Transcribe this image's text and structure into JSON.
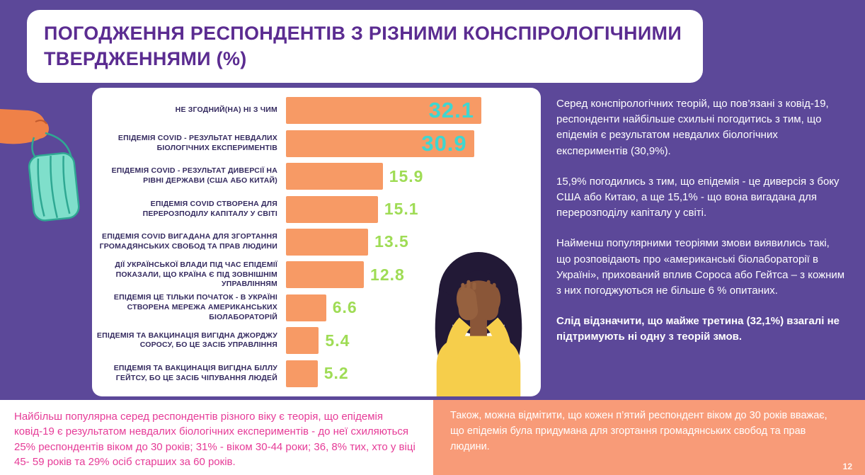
{
  "header": {
    "title": "ПОГОДЖЕННЯ РЕСПОНДЕНТІВ З РІЗНИМИ КОНСПІРОЛОГІЧНИМИ ТВЕРДЖЕННЯМИ (%)"
  },
  "chart_data": {
    "type": "bar",
    "orientation": "horizontal",
    "unit": "%",
    "categories": [
      "НЕ ЗГОДНИЙ(НА) НІ З ЧИМ",
      "ЕПІДЕМІЯ COVID - РЕЗУЛЬТАТ НЕВДАЛИХ БІОЛОГІЧНИХ ЕКСПЕРИМЕНТІВ",
      "ЕПІДЕМІЯ COVID - РЕЗУЛЬТАТ ДИВЕРСІЇ НА РІВНІ ДЕРЖАВИ (США АБО КИТАЙ)",
      "ЕПІДЕМІЯ COVID СТВОРЕНА ДЛЯ ПЕРЕРОЗПОДІЛУ КАПІТАЛУ У СВІТІ",
      "ЕПІДЕМІЯ COVID ВИГАДАНА ДЛЯ ЗГОРТАННЯ ГРОМАДЯНСЬКИХ СВОБОД ТА ПРАВ ЛЮДИНИ",
      "ДІЇ УКРАЇНСЬКОЇ ВЛАДИ ПІД ЧАС ЕПІДЕМІЇ ПОКАЗАЛИ, ЩО КРАЇНА Є ПІД ЗОВНІШНІМ УПРАВЛІННЯМ",
      "ЕПІДЕМІЯ ЦЕ ТІЛЬКИ ПОЧАТОК - В УКРАЇНІ СТВОРЕНА МЕРЕЖА АМЕРИКАНСЬКИХ БІОЛАБОРАТОРІЙ",
      "ЕПІДЕМІЯ ТА ВАКЦИНАЦІЯ ВИГІДНА ДЖОРДЖУ СОРОСУ, БО ЦЕ ЗАСІБ УПРАВЛІННЯ",
      "ЕПІДЕМІЯ ТА ВАКЦИНАЦІЯ ВИГІДНА БІЛЛУ ГЕЙТСУ, БО ЦЕ ЗАСІБ ЧІПУВАННЯ ЛЮДЕЙ"
    ],
    "values": [
      32.1,
      30.9,
      15.9,
      15.1,
      13.5,
      12.8,
      6.6,
      5.4,
      5.2
    ],
    "value_labels": [
      "32.1",
      "30.9",
      "15.9",
      "15.1",
      "13.5",
      "12.8",
      "6.6",
      "5.4",
      "5.2"
    ],
    "highlight_indices": [
      0,
      1
    ],
    "xlim": [
      0,
      35
    ],
    "bar_color": "#F79A65",
    "highlight_value_color": "#3FD6D0",
    "value_color": "#9FDC55",
    "grid": false,
    "legend": "none"
  },
  "commentary": {
    "p1": "Серед конспірологічних теорій, що пов’язані з ковід-19, респонденти найбільше схильні погодитись з тим, що епідемія є результатом невдалих біологічних експериментів (30,9%).",
    "p2": "15,9% погодились з тим, що епідемія - це диверсія з боку США або Китаю, а ще 15,1% - що вона вигадана для перерозподілу капіталу у світі.",
    "p3": "Найменш популярними теоріями змови виявились такі, що розповідають про «американські біолабораторії в Україні», прихований вплив Сороса або Гейтса – з кожним з них погоджуються не більше 6 % опитаних.",
    "p4": "Слід відзначити, що майже третина (32,1%) взагалі не підтримують ні одну з теорій змов."
  },
  "footer": {
    "left_text": "Найбільш популярна серед респондентів різного віку є теорія, що епідемія ковід-19 є результатом невдалих біологічних експериментів - до неї схиляються 25% респондентів віком до 30 років; 31% - віком 30-44 роки; 36, 8% тих, хто у віці 45- 59 років та 29% осіб старших за 60 років.",
    "right_text": "Також, можна відмітити, що кожен п’ятий респондент віком до 30 років вважає, що епідемія була придумана для згортання громадянських свобод та прав людини.",
    "page_number": "12"
  },
  "illustrations": {
    "hand_mask": "hand-holding-face-mask",
    "person": "person-covering-face"
  },
  "colors": {
    "bg": "#5C4899",
    "title": "#5B2C91",
    "bar": "#F79A65",
    "value_highlight": "#3FD6D0",
    "value": "#9FDC55",
    "label": "#342A5F",
    "footnote_pink": "#E63B97",
    "footnote_bg": "#F89B78"
  }
}
